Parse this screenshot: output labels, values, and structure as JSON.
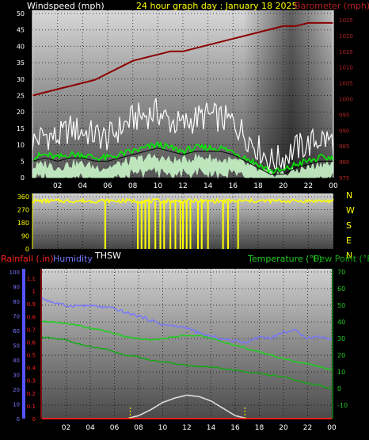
{
  "header": {
    "left_label": "Windspeed (mph)",
    "center_label": "24 hour graph day : January 18 2025",
    "right_label": "Barometer (mph)"
  },
  "wind_dir_panel": {
    "sublabel": "THSW"
  },
  "bottom_panel": {
    "rain_label": "Rainfall (.in)",
    "humidity_label": "Humidity",
    "temp_label": "Temperature (°F)",
    "dew_label": "Dew Point (°F)"
  },
  "colors": {
    "background": "#000000",
    "header_text": "#ffff00",
    "wind_axis": "#ffffff",
    "barometer": "#8b0000",
    "barometer_axis": "#b22222",
    "gust": "#ffffff",
    "wind_avg": "#00ee00",
    "wind_low": "#c8f5c8",
    "wind_dir": "#ffff00",
    "rain": "#ff2020",
    "humidity": "#7777ff",
    "temperature": "#22cc22",
    "dew_point": "#11aa11",
    "solar": "#dddddd",
    "sun_marker": "#ffff00"
  },
  "chart_data": [
    {
      "type": "line",
      "title": "24 hour graph day : January 18 2025",
      "xlabel": "",
      "x_ticks": [
        "02",
        "04",
        "06",
        "08",
        "10",
        "12",
        "14",
        "16",
        "18",
        "20",
        "22",
        "00"
      ],
      "y_left_label": "Windspeed (mph)",
      "y_left_ticks": [
        0,
        5,
        10,
        15,
        20,
        25,
        30,
        35,
        40,
        45,
        50
      ],
      "y_left_range": [
        0,
        50
      ],
      "y_right_label": "Barometer (mph)",
      "y_right_ticks": [
        975,
        980,
        985,
        990,
        995,
        1000,
        1005,
        1010,
        1015,
        1020,
        1025
      ],
      "y_right_range": [
        975,
        1027
      ],
      "x_hours": [
        0,
        1,
        2,
        3,
        4,
        5,
        6,
        7,
        8,
        9,
        10,
        11,
        12,
        13,
        14,
        15,
        16,
        17,
        18,
        19,
        20,
        21,
        22,
        23,
        24
      ],
      "series": [
        {
          "name": "Barometer",
          "axis": "right",
          "values": [
            1001,
            1002,
            1003,
            1004,
            1005,
            1006,
            1008,
            1010,
            1012,
            1013,
            1014,
            1015,
            1015,
            1016,
            1017,
            1018,
            1019,
            1020,
            1021,
            1022,
            1023,
            1023,
            1024,
            1024,
            1024
          ]
        },
        {
          "name": "Gust",
          "axis": "left",
          "values": [
            11,
            13,
            12,
            15,
            14,
            13,
            12,
            15,
            18,
            19,
            20,
            17,
            16,
            18,
            19,
            18,
            17,
            13,
            9,
            5,
            6,
            9,
            10,
            12,
            11
          ]
        },
        {
          "name": "Wind average",
          "axis": "left",
          "values": [
            6,
            7,
            6,
            7,
            7,
            6,
            6,
            7,
            8,
            9,
            10,
            9,
            8,
            9,
            9,
            9,
            8,
            6,
            4,
            2,
            2,
            4,
            5,
            6,
            6
          ]
        },
        {
          "name": "Wind low",
          "axis": "left",
          "values": [
            3,
            4,
            3,
            4,
            4,
            3,
            3,
            4,
            5,
            6,
            6,
            5,
            5,
            6,
            6,
            5,
            5,
            4,
            2,
            1,
            1,
            2,
            3,
            4,
            4
          ]
        }
      ]
    },
    {
      "type": "scatter",
      "title": "",
      "x_ticks": [
        "02",
        "04",
        "06",
        "08",
        "10",
        "12",
        "14",
        "16",
        "18",
        "20",
        "22",
        "00"
      ],
      "y_left_ticks": [
        0,
        90,
        180,
        270,
        360
      ],
      "y_range": [
        0,
        360
      ],
      "y_right_ticks": [
        "N",
        "W",
        "S",
        "E",
        "N"
      ],
      "baseline_deg": 330,
      "series": [
        {
          "name": "Wind direction",
          "note": "dips to 0 at listed hours",
          "drops_at_hours": [
            5.8,
            8.4,
            8.7,
            9.0,
            9.3,
            9.8,
            10.2,
            10.5,
            11.0,
            11.4,
            11.8,
            12.0,
            12.3,
            12.6,
            13.2,
            13.5,
            14.0,
            15.2,
            15.6,
            16.4
          ]
        }
      ]
    },
    {
      "type": "line",
      "title": "",
      "x_ticks": [
        "02",
        "04",
        "06",
        "08",
        "10",
        "12",
        "14",
        "16",
        "18",
        "20",
        "22",
        "00"
      ],
      "y_left_outer_label": "Humidity",
      "y_left_outer_ticks": [
        0,
        10,
        20,
        30,
        40,
        50,
        60,
        70,
        80,
        90,
        100
      ],
      "y_left_inner_label": "Rainfall (.in)",
      "y_left_inner_ticks": [
        0,
        0.1,
        0.2,
        0.3,
        0.4,
        0.5,
        0.6,
        0.7,
        0.8,
        0.9,
        1,
        1.1
      ],
      "y_right_label": "Temperature (°F)",
      "y_right_ticks": [
        -10,
        0,
        10,
        20,
        30,
        40,
        50,
        60,
        70
      ],
      "y_right_range": [
        -18,
        70
      ],
      "x_hours": [
        0,
        1,
        2,
        3,
        4,
        5,
        6,
        7,
        8,
        9,
        10,
        11,
        12,
        13,
        14,
        15,
        16,
        17,
        18,
        19,
        20,
        21,
        22,
        23,
        24
      ],
      "series": [
        {
          "name": "Humidity",
          "axis": "outer_left",
          "values": [
            82,
            79,
            77,
            77,
            77,
            76,
            75,
            72,
            70,
            67,
            64,
            63,
            62,
            58,
            56,
            54,
            53,
            52,
            56,
            55,
            59,
            60,
            55,
            56,
            54
          ]
        },
        {
          "name": "Temperature",
          "axis": "right",
          "values": [
            40,
            40,
            39,
            38,
            36,
            35,
            33,
            31,
            30,
            29,
            30,
            31,
            32,
            32,
            30,
            28,
            26,
            24,
            22,
            20,
            18,
            16,
            15,
            13,
            11
          ]
        },
        {
          "name": "Dew Point",
          "axis": "right",
          "values": [
            31,
            30,
            29,
            27,
            25,
            24,
            22,
            20,
            19,
            17,
            16,
            15,
            14,
            13,
            13,
            12,
            11,
            10,
            9,
            8,
            7,
            5,
            3,
            2,
            0
          ]
        },
        {
          "name": "Solar",
          "axis": "outer_left",
          "values": [
            0,
            0,
            0,
            0,
            0,
            0,
            0,
            0,
            2,
            6,
            11,
            14,
            16,
            15,
            12,
            7,
            2,
            0,
            0,
            0,
            0,
            0,
            0,
            0,
            0
          ]
        },
        {
          "name": "Rainfall",
          "axis": "inner_left",
          "values": [
            0,
            0,
            0,
            0,
            0,
            0,
            0,
            0,
            0,
            0,
            0,
            0,
            0,
            0,
            0,
            0,
            0,
            0,
            0,
            0,
            0,
            0,
            0,
            0,
            0
          ]
        }
      ],
      "sun_markers_hours": [
        7.3,
        16.8
      ]
    }
  ]
}
